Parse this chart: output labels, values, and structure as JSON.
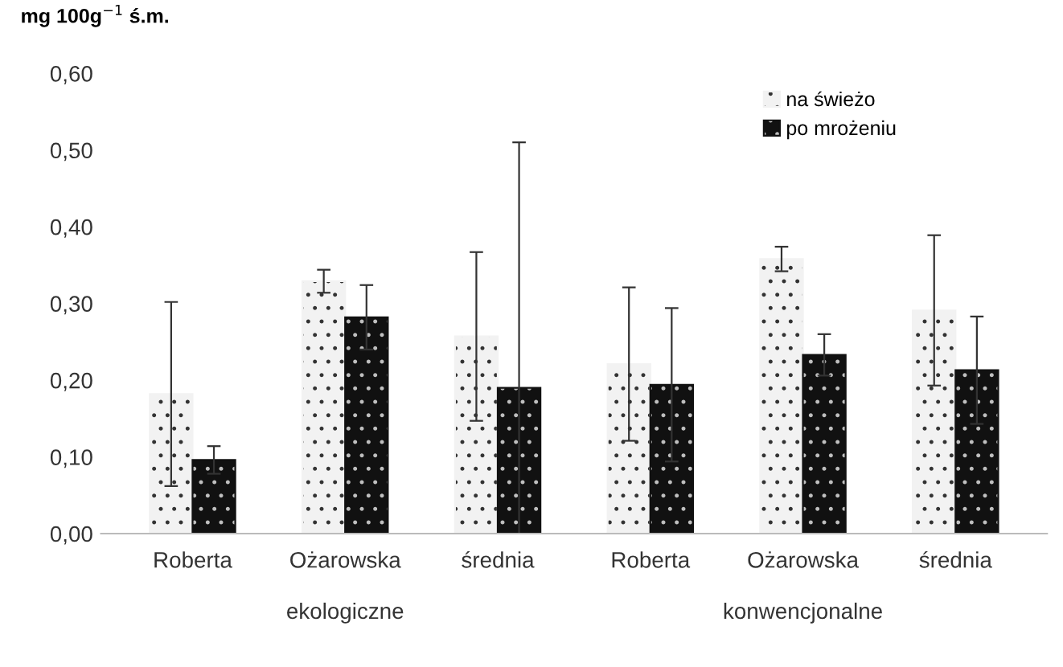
{
  "chart_data": {
    "type": "bar",
    "ylabel": "mg 100g$^{−1}$ ś.m.",
    "categories": [
      "Roberta",
      "Ożarowska",
      "średnia",
      "Roberta",
      "Ożarowska",
      "średnia"
    ],
    "annotations": [
      "ekologiczne",
      "konwencjonalne"
    ],
    "series": [
      {
        "name": "na świeżo",
        "color": "#f2f2f2",
        "values": [
          0.182,
          0.329,
          0.257,
          0.221,
          0.358,
          0.291
        ],
        "errors": [
          0.12,
          0.015,
          0.11,
          0.1,
          0.016,
          0.098
        ]
      },
      {
        "name": "po mrożeniu",
        "color": "#111111",
        "values": [
          0.096,
          0.282,
          0.19,
          0.194,
          0.233,
          0.213
        ],
        "errors": [
          0.018,
          0.042,
          0.32,
          0.1,
          0.027,
          0.07
        ]
      }
    ],
    "ylim": [
      0,
      0.6
    ],
    "yticks": [
      {
        "value": 0,
        "label": "0,00"
      },
      {
        "value": 0.1,
        "label": "0,10"
      },
      {
        "value": 0.2,
        "label": "0,20"
      },
      {
        "value": 0.3,
        "label": "0,30"
      },
      {
        "value": 0.4,
        "label": "0,40"
      },
      {
        "value": 0.5,
        "label": "0,50"
      },
      {
        "value": 0.6,
        "label": "0,60"
      }
    ],
    "legend": "top right",
    "grid": false
  }
}
